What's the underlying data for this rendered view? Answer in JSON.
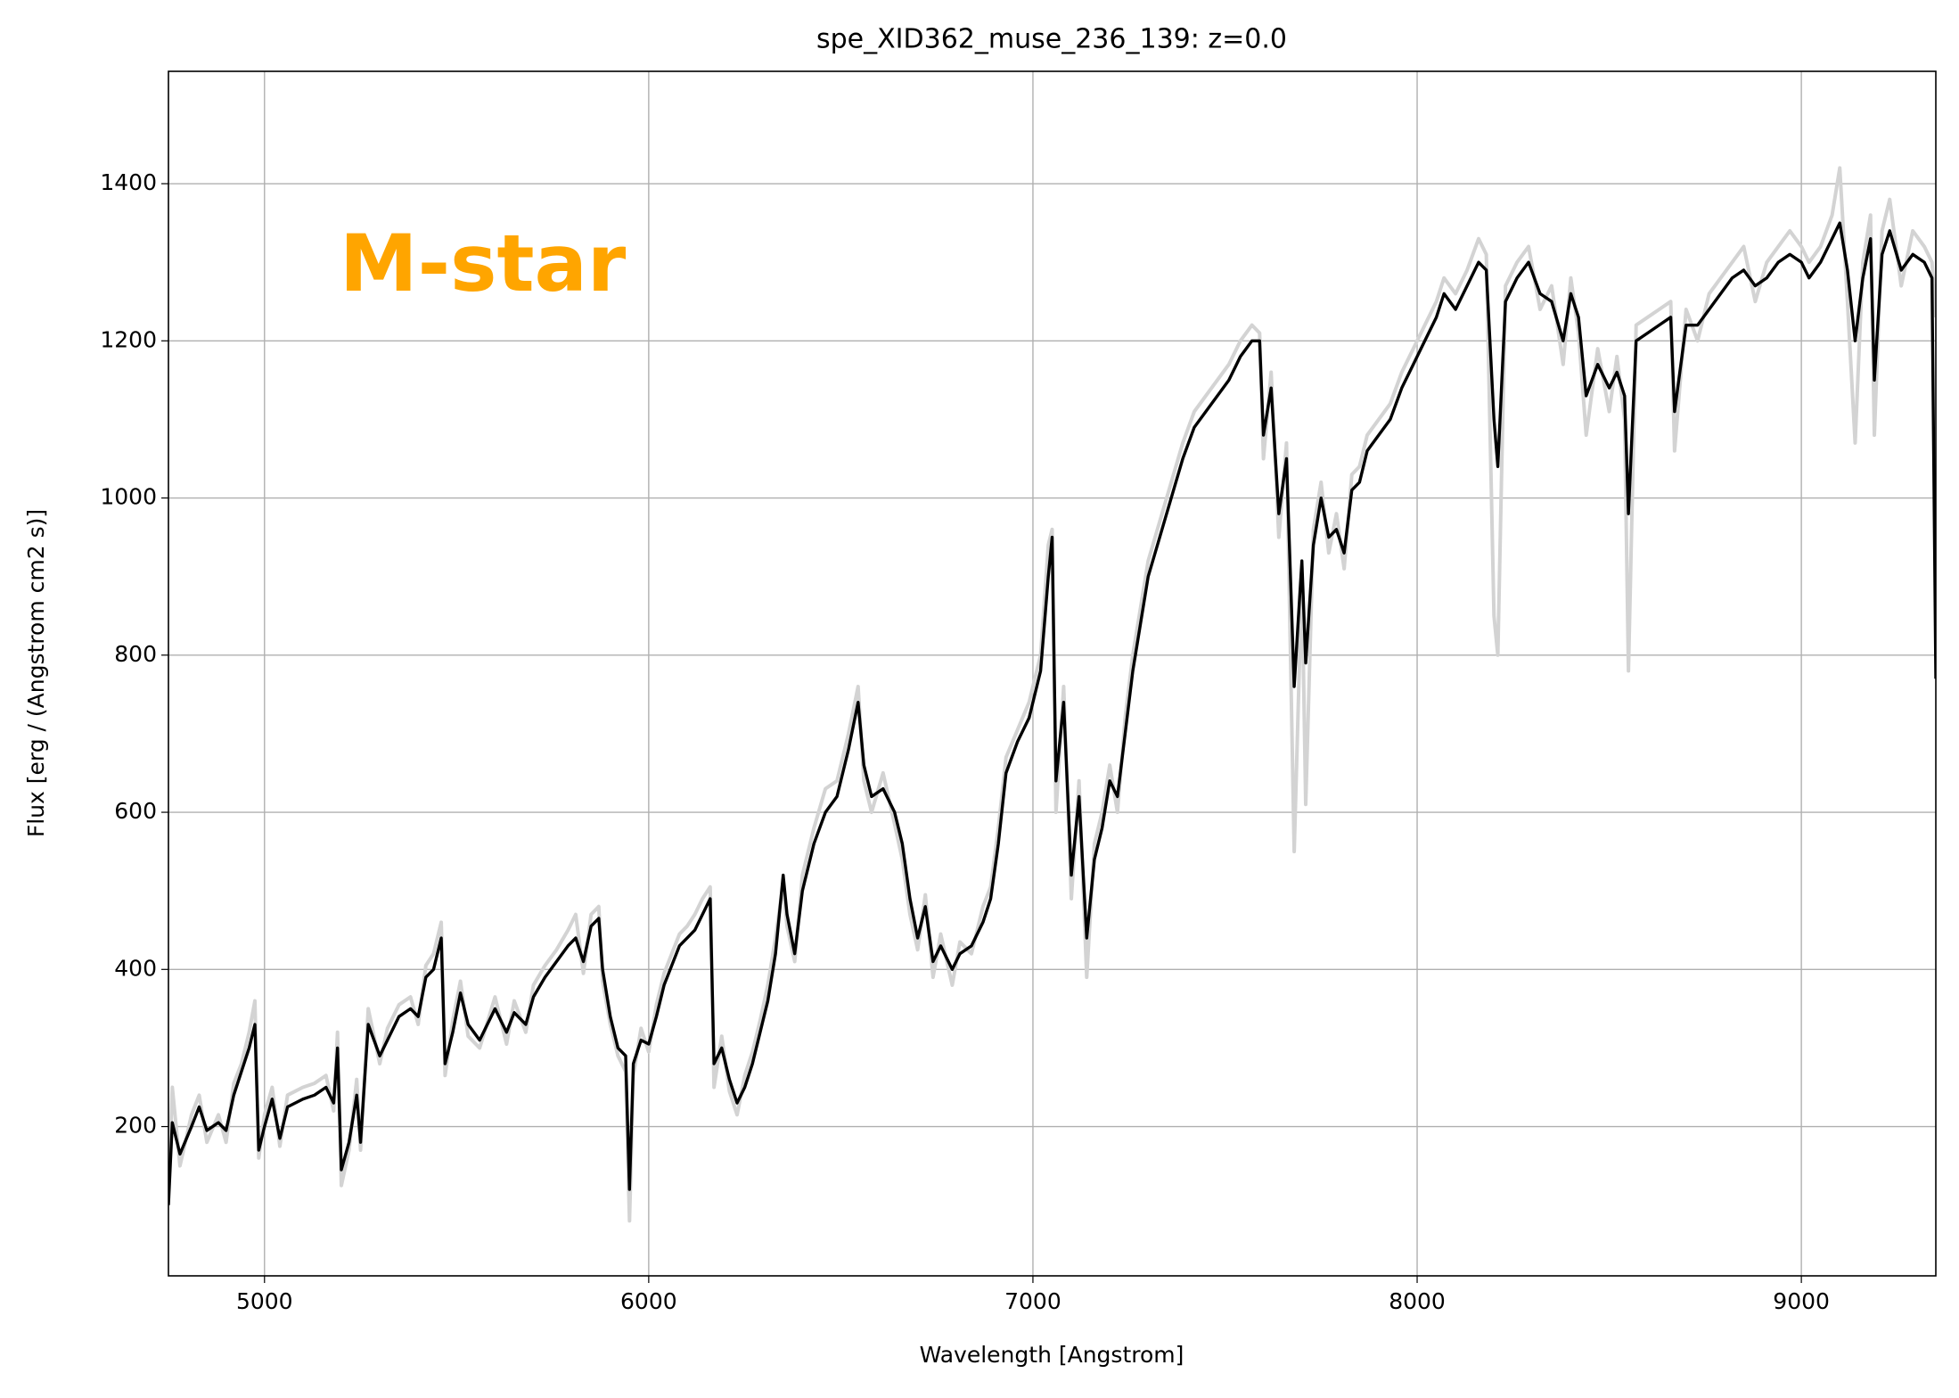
{
  "chart_data": {
    "type": "line",
    "title": "spe_XID362_muse_236_139: z=0.0",
    "xlabel": "Wavelength [Angstrom]",
    "ylabel": "Flux [erg / (Angstrom cm2 s)]",
    "annotations": [
      {
        "text": "M-star",
        "color": "#ffa500"
      }
    ],
    "xlim": [
      4750,
      9350
    ],
    "ylim": [
      10,
      1543
    ],
    "xticks": [
      5000,
      6000,
      7000,
      8000,
      9000
    ],
    "yticks": [
      200,
      400,
      600,
      800,
      1000,
      1200,
      1400
    ],
    "grid": true,
    "x": [
      4750,
      4760,
      4780,
      4810,
      4830,
      4850,
      4880,
      4900,
      4920,
      4940,
      4960,
      4975,
      4985,
      5000,
      5020,
      5040,
      5060,
      5100,
      5130,
      5160,
      5180,
      5190,
      5200,
      5220,
      5240,
      5250,
      5270,
      5300,
      5320,
      5350,
      5380,
      5400,
      5420,
      5440,
      5460,
      5470,
      5490,
      5510,
      5530,
      5560,
      5600,
      5630,
      5650,
      5680,
      5700,
      5730,
      5760,
      5790,
      5810,
      5830,
      5850,
      5870,
      5880,
      5900,
      5920,
      5940,
      5950,
      5960,
      5980,
      6000,
      6020,
      6040,
      6060,
      6080,
      6100,
      6120,
      6140,
      6160,
      6170,
      6190,
      6210,
      6230,
      6250,
      6270,
      6290,
      6310,
      6330,
      6350,
      6360,
      6380,
      6400,
      6430,
      6460,
      6490,
      6520,
      6545,
      6560,
      6580,
      6610,
      6640,
      6660,
      6680,
      6700,
      6720,
      6740,
      6760,
      6790,
      6810,
      6840,
      6870,
      6890,
      6910,
      6930,
      6960,
      6990,
      7020,
      7040,
      7050,
      7060,
      7080,
      7100,
      7120,
      7140,
      7160,
      7180,
      7200,
      7220,
      7240,
      7260,
      7280,
      7300,
      7330,
      7360,
      7390,
      7420,
      7450,
      7480,
      7510,
      7540,
      7570,
      7590,
      7600,
      7620,
      7640,
      7660,
      7680,
      7700,
      7710,
      7730,
      7750,
      7770,
      7790,
      7810,
      7830,
      7850,
      7870,
      7900,
      7930,
      7960,
      7990,
      8020,
      8050,
      8070,
      8100,
      8130,
      8160,
      8180,
      8200,
      8210,
      8230,
      8260,
      8290,
      8320,
      8350,
      8380,
      8400,
      8420,
      8440,
      8470,
      8500,
      8520,
      8540,
      8550,
      8570,
      8600,
      8630,
      8660,
      8670,
      8700,
      8730,
      8760,
      8790,
      8820,
      8850,
      8880,
      8910,
      8940,
      8970,
      9000,
      9020,
      9050,
      9080,
      9100,
      9120,
      9140,
      9160,
      9180,
      9190,
      9210,
      9230,
      9260,
      9290,
      9320,
      9340,
      9350
    ],
    "series": [
      {
        "color": "#d3d3d3",
        "values": [
          120,
          250,
          150,
          215,
          240,
          180,
          215,
          180,
          255,
          280,
          320,
          360,
          160,
          215,
          250,
          175,
          240,
          250,
          255,
          265,
          220,
          320,
          125,
          170,
          260,
          170,
          350,
          280,
          325,
          355,
          365,
          330,
          405,
          420,
          460,
          265,
          335,
          385,
          315,
          300,
          365,
          305,
          360,
          320,
          380,
          405,
          425,
          450,
          470,
          395,
          470,
          480,
          385,
          330,
          290,
          270,
          80,
          265,
          325,
          295,
          355,
          395,
          420,
          445,
          455,
          470,
          490,
          505,
          250,
          315,
          245,
          215,
          265,
          295,
          335,
          380,
          440,
          510,
          455,
          410,
          520,
          580,
          630,
          640,
          700,
          760,
          640,
          600,
          650,
          585,
          540,
          470,
          425,
          495,
          390,
          445,
          380,
          435,
          420,
          480,
          505,
          580,
          670,
          705,
          740,
          800,
          940,
          960,
          600,
          760,
          490,
          640,
          390,
          560,
          600,
          660,
          600,
          720,
          800,
          860,
          920,
          970,
          1020,
          1070,
          1110,
          1130,
          1150,
          1170,
          1200,
          1220,
          1210,
          1050,
          1160,
          950,
          1070,
          550,
          900,
          610,
          960,
          1020,
          930,
          980,
          910,
          1030,
          1040,
          1080,
          1100,
          1120,
          1160,
          1190,
          1220,
          1250,
          1280,
          1260,
          1290,
          1330,
          1310,
          850,
          800,
          1270,
          1300,
          1320,
          1240,
          1270,
          1170,
          1280,
          1210,
          1080,
          1190,
          1110,
          1180,
          1100,
          780,
          1220,
          1230,
          1240,
          1250,
          1060,
          1240,
          1200,
          1260,
          1280,
          1300,
          1320,
          1250,
          1300,
          1320,
          1340,
          1320,
          1300,
          1320,
          1360,
          1420,
          1250,
          1070,
          1300,
          1360,
          1080,
          1340,
          1380,
          1270,
          1340,
          1320,
          1300,
          1230
        ]
      },
      {
        "color": "#000000",
        "values": [
          100,
          205,
          165,
          200,
          225,
          195,
          205,
          195,
          240,
          270,
          300,
          330,
          170,
          200,
          235,
          185,
          225,
          235,
          240,
          250,
          230,
          300,
          145,
          180,
          240,
          180,
          330,
          290,
          310,
          340,
          350,
          340,
          390,
          400,
          440,
          280,
          320,
          370,
          330,
          310,
          350,
          320,
          345,
          330,
          365,
          390,
          410,
          430,
          440,
          410,
          455,
          465,
          400,
          340,
          300,
          290,
          120,
          280,
          310,
          305,
          340,
          380,
          405,
          430,
          440,
          450,
          470,
          490,
          280,
          300,
          260,
          230,
          250,
          280,
          320,
          360,
          420,
          520,
          470,
          420,
          500,
          560,
          600,
          620,
          680,
          740,
          660,
          620,
          630,
          600,
          560,
          490,
          440,
          480,
          410,
          430,
          400,
          420,
          430,
          460,
          490,
          560,
          650,
          690,
          720,
          780,
          900,
          950,
          640,
          740,
          520,
          620,
          440,
          540,
          580,
          640,
          620,
          700,
          780,
          840,
          900,
          950,
          1000,
          1050,
          1090,
          1110,
          1130,
          1150,
          1180,
          1200,
          1200,
          1080,
          1140,
          980,
          1050,
          760,
          920,
          790,
          940,
          1000,
          950,
          960,
          930,
          1010,
          1020,
          1060,
          1080,
          1100,
          1140,
          1170,
          1200,
          1230,
          1260,
          1240,
          1270,
          1300,
          1290,
          1100,
          1040,
          1250,
          1280,
          1300,
          1260,
          1250,
          1200,
          1260,
          1230,
          1130,
          1170,
          1140,
          1160,
          1130,
          980,
          1200,
          1210,
          1220,
          1230,
          1110,
          1220,
          1220,
          1240,
          1260,
          1280,
          1290,
          1270,
          1280,
          1300,
          1310,
          1300,
          1280,
          1300,
          1330,
          1350,
          1290,
          1200,
          1280,
          1330,
          1150,
          1310,
          1340,
          1290,
          1310,
          1300,
          1280,
          770
        ]
      }
    ]
  }
}
